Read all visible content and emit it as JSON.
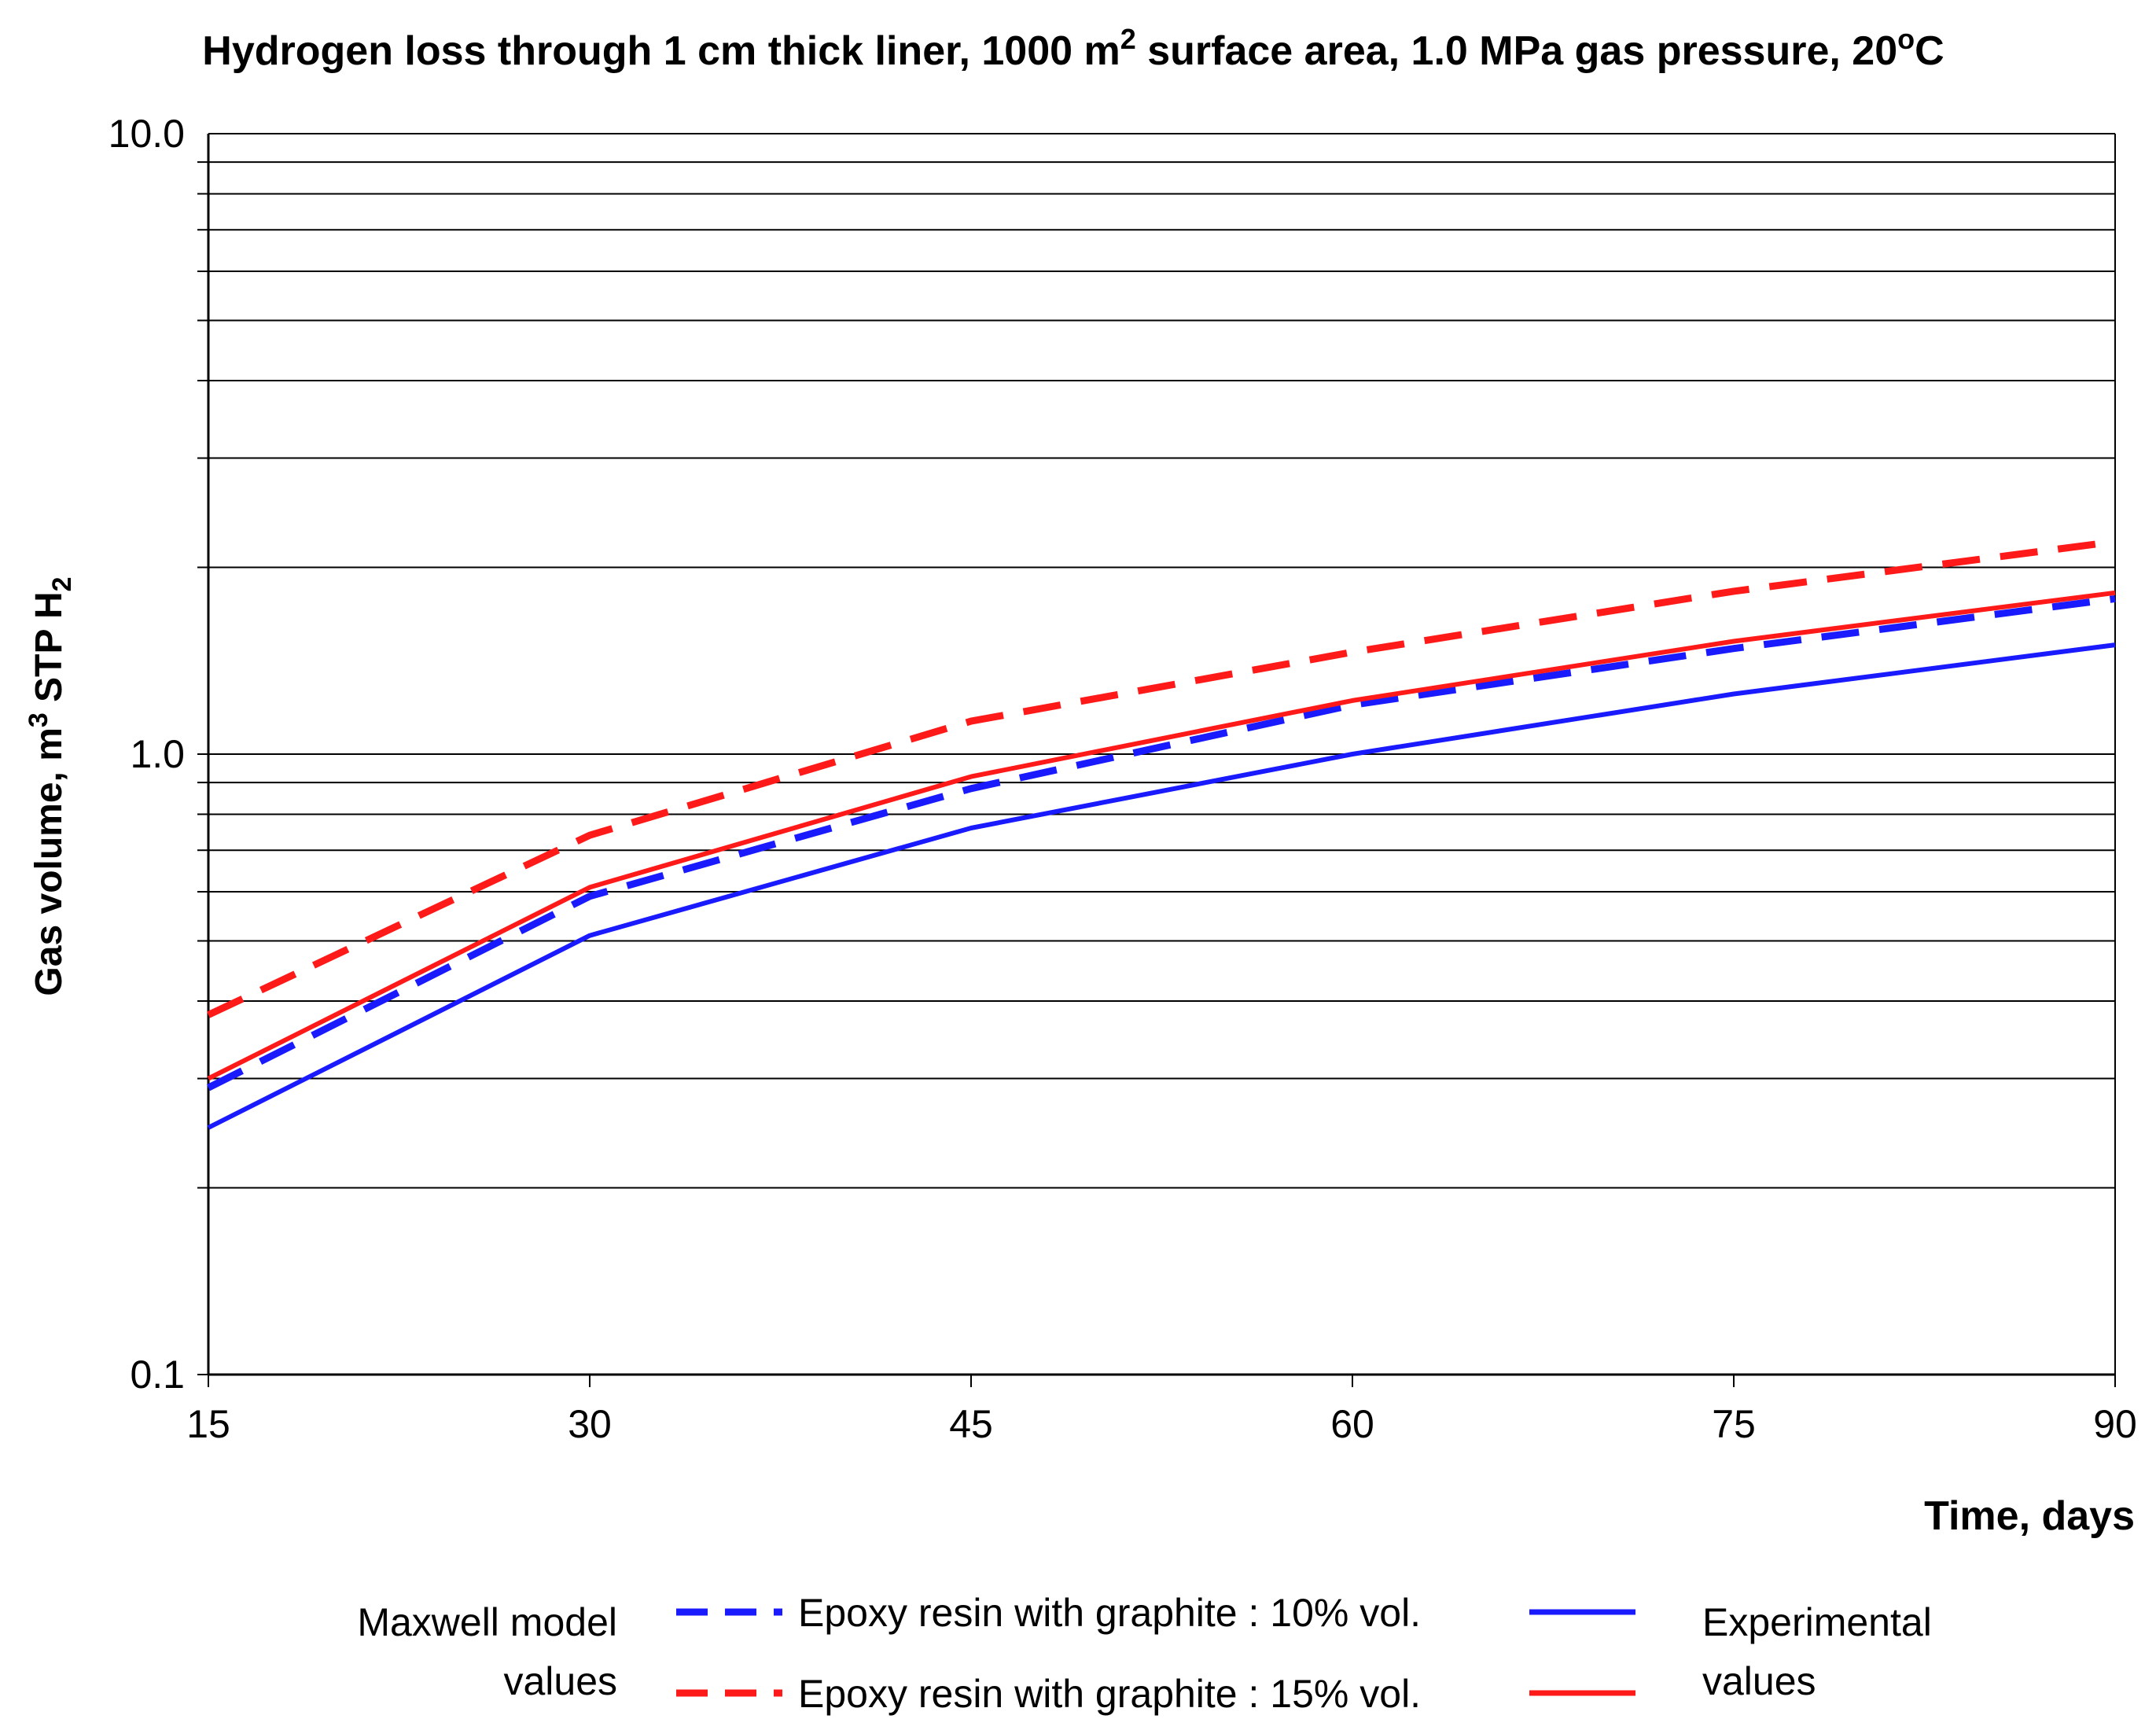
{
  "chart_data": {
    "type": "line",
    "title": {
      "part1": "Hydrogen loss through 1 cm thick liner, 1000 m",
      "sup1": "2",
      "part2": " surface area, 1.0 MPa gas pressure, 20",
      "sup2": "o",
      "part3": "C"
    },
    "xlabel": "Time, days",
    "ylabel": {
      "part1": "Gas volume,  m",
      "sup": "3",
      "part2": " STP H",
      "sub": "2"
    },
    "x_ticks": [
      15,
      30,
      45,
      60,
      75,
      90
    ],
    "y_ticks": [
      {
        "value": 0.1,
        "label": "0.1"
      },
      {
        "value": 1.0,
        "label": "1.0"
      },
      {
        "value": 10.0,
        "label": "10.0"
      }
    ],
    "xlim": [
      15,
      90
    ],
    "ylim": [
      0.1,
      10.0
    ],
    "y_scale": "log",
    "grid": "horizontal minor and major",
    "x": [
      15,
      30,
      45,
      60,
      75,
      90
    ],
    "series": [
      {
        "key": "model_10",
        "color": "#1a1aff",
        "style": "dashed",
        "values": [
          0.29,
          0.59,
          0.88,
          1.2,
          1.48,
          1.78
        ]
      },
      {
        "key": "model_15",
        "color": "#ff1a1a",
        "style": "dashed",
        "values": [
          0.38,
          0.74,
          1.13,
          1.46,
          1.83,
          2.2
        ]
      },
      {
        "key": "exp_10",
        "color": "#1a1aff",
        "style": "solid",
        "values": [
          0.25,
          0.51,
          0.76,
          1.0,
          1.25,
          1.5
        ]
      },
      {
        "key": "exp_15",
        "color": "#ff1a1a",
        "style": "solid",
        "values": [
          0.3,
          0.61,
          0.92,
          1.22,
          1.52,
          1.82
        ]
      }
    ],
    "legend": {
      "placement": "bottom",
      "model_label": {
        "line1": "Maxwell model",
        "line2": "values"
      },
      "exp_label": {
        "line1": "Experimental",
        "line2": "values"
      },
      "row1": "Epoxy resin with graphite : 10%  vol.",
      "row2": "Epoxy resin with graphite : 15%  vol."
    }
  }
}
